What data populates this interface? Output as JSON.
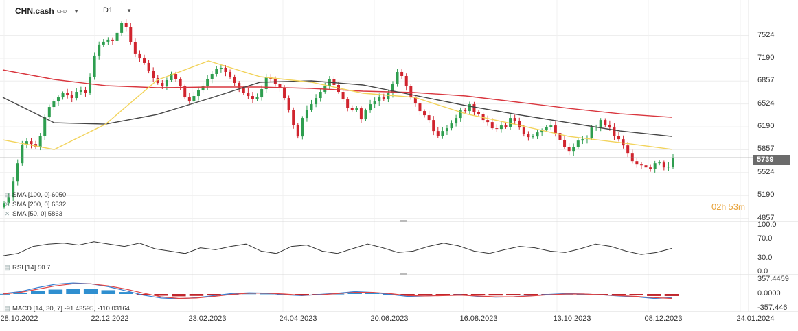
{
  "header": {
    "symbol": "CHN.cash",
    "symbol_type": "CFD",
    "timeframe": "D1"
  },
  "indicators": {
    "sma100": "SMA [100, 0] 6050",
    "sma200": "SMA [200, 0] 6332",
    "sma50": "SMA [50, 0] 5863",
    "rsi": "RSI [14] 50.7",
    "macd": "MACD [14, 30, 7] -91.43595, -110.03164"
  },
  "price_tag": "5739",
  "countdown": {
    "h": "02",
    "m": "53"
  },
  "colors": {
    "sma200": "#d9363e",
    "sma100": "#444444",
    "sma50": "#f2d35b",
    "bull": "#2e9e4f",
    "bear": "#d0242e",
    "macd_up": "#2f8fd0",
    "macd_down": "#c0262c",
    "signal": "#e04444",
    "macd_line": "#3a7fd0"
  },
  "chart_data": [
    {
      "type": "candlestick",
      "title": "",
      "y_ticks": [
        "7524",
        "7190",
        "6857",
        "6524",
        "6190",
        "5857",
        "5524",
        "5190",
        "4857"
      ],
      "x_ticks": [
        "28.10.2022",
        "22.12.2022",
        "23.02.2023",
        "24.04.2023",
        "20.06.2023",
        "16.08.2023",
        "13.10.2023",
        "08.12.2023",
        "24.01.2024"
      ],
      "ylim": [
        4857,
        7690
      ],
      "current_price": 5739,
      "close_series": [
        5080,
        5160,
        5400,
        5660,
        5930,
        5980,
        5940,
        5900,
        6060,
        6330,
        6480,
        6560,
        6620,
        6680,
        6650,
        6610,
        6700,
        6720,
        6690,
        6920,
        7230,
        7390,
        7430,
        7460,
        7440,
        7560,
        7700,
        7640,
        7420,
        7250,
        7190,
        7120,
        7010,
        6900,
        6830,
        6780,
        6870,
        6960,
        6880,
        6780,
        6620,
        6560,
        6640,
        6720,
        6780,
        6890,
        6960,
        7030,
        7050,
        6990,
        6920,
        6830,
        6760,
        6690,
        6640,
        6600,
        6620,
        6740,
        6910,
        6880,
        6820,
        6760,
        6610,
        6440,
        6220,
        6050,
        6320,
        6440,
        6520,
        6610,
        6700,
        6780,
        6880,
        6800,
        6700,
        6590,
        6470,
        6440,
        6460,
        6300,
        6430,
        6520,
        6560,
        6620,
        6600,
        6680,
        6810,
        6990,
        6930,
        6780,
        6620,
        6530,
        6420,
        6360,
        6290,
        6130,
        6060,
        6130,
        6170,
        6240,
        6320,
        6430,
        6420,
        6520,
        6410,
        6380,
        6290,
        6260,
        6170,
        6160,
        6210,
        6190,
        6320,
        6280,
        6180,
        6090,
        6040,
        6050,
        6110,
        6140,
        6190,
        6210,
        6100,
        6000,
        5900,
        5830,
        5900,
        5990,
        6010,
        6030,
        6180,
        6190,
        6290,
        6220,
        6180,
        6060,
        6010,
        5920,
        5810,
        5690,
        5640,
        5630,
        5600,
        5580,
        5660,
        5670,
        5600,
        5610,
        5740
      ],
      "series": [
        {
          "name": "SMA [200, 0] 6332",
          "values": [
            7020,
            6880,
            6790,
            6760,
            6770,
            6770,
            6750,
            6710,
            6690,
            6640,
            6550,
            6460,
            6380,
            6330
          ]
        },
        {
          "name": "SMA [100, 0] 6050",
          "values": [
            6620,
            6250,
            6230,
            6370,
            6600,
            6840,
            6860,
            6800,
            6650,
            6500,
            6370,
            6250,
            6130,
            6050
          ]
        },
        {
          "name": "SMA [50, 0] 5863",
          "values": [
            6000,
            5860,
            6230,
            6870,
            7150,
            6920,
            6840,
            6680,
            6620,
            6380,
            6220,
            6050,
            5960,
            5863
          ]
        }
      ]
    },
    {
      "type": "line",
      "title": "",
      "y_ticks": [
        "100.0",
        "70.0",
        "30.0",
        "0.0"
      ],
      "ylim": [
        0,
        100
      ],
      "series": [
        {
          "name": "RSI [14] 50.7",
          "values": [
            35,
            40,
            55,
            60,
            62,
            58,
            65,
            60,
            55,
            62,
            50,
            45,
            40,
            52,
            48,
            55,
            60,
            45,
            40,
            55,
            58,
            45,
            40,
            50,
            60,
            52,
            42,
            45,
            55,
            62,
            56,
            45,
            40,
            48,
            55,
            52,
            45,
            42,
            50,
            60,
            55,
            45,
            38,
            42,
            50.7
          ]
        }
      ]
    },
    {
      "type": "bar+line",
      "title": "",
      "y_ticks": [
        "357.4459",
        "0.0000",
        "-357.446"
      ],
      "ylim": [
        -357.446,
        357.4459
      ],
      "series": [
        {
          "name": "MACD",
          "values": [
            10,
            60,
            160,
            240,
            270,
            250,
            180,
            80,
            -30,
            -100,
            -120,
            -90,
            -40,
            10,
            30,
            20,
            -20,
            -40,
            -10,
            20,
            60,
            40,
            -10,
            -60,
            -50,
            -30,
            -20,
            -60,
            -80,
            -70,
            -40,
            -10,
            10,
            0,
            -20,
            -50,
            -70,
            -110,
            -91
          ]
        },
        {
          "name": "Signal",
          "values": [
            0,
            40,
            120,
            200,
            250,
            250,
            200,
            120,
            20,
            -70,
            -110,
            -100,
            -60,
            -10,
            20,
            20,
            0,
            -30,
            -20,
            10,
            40,
            40,
            10,
            -40,
            -50,
            -40,
            -30,
            -50,
            -70,
            -70,
            -50,
            -20,
            0,
            0,
            -20,
            -40,
            -60,
            -90,
            -110
          ]
        }
      ]
    }
  ]
}
